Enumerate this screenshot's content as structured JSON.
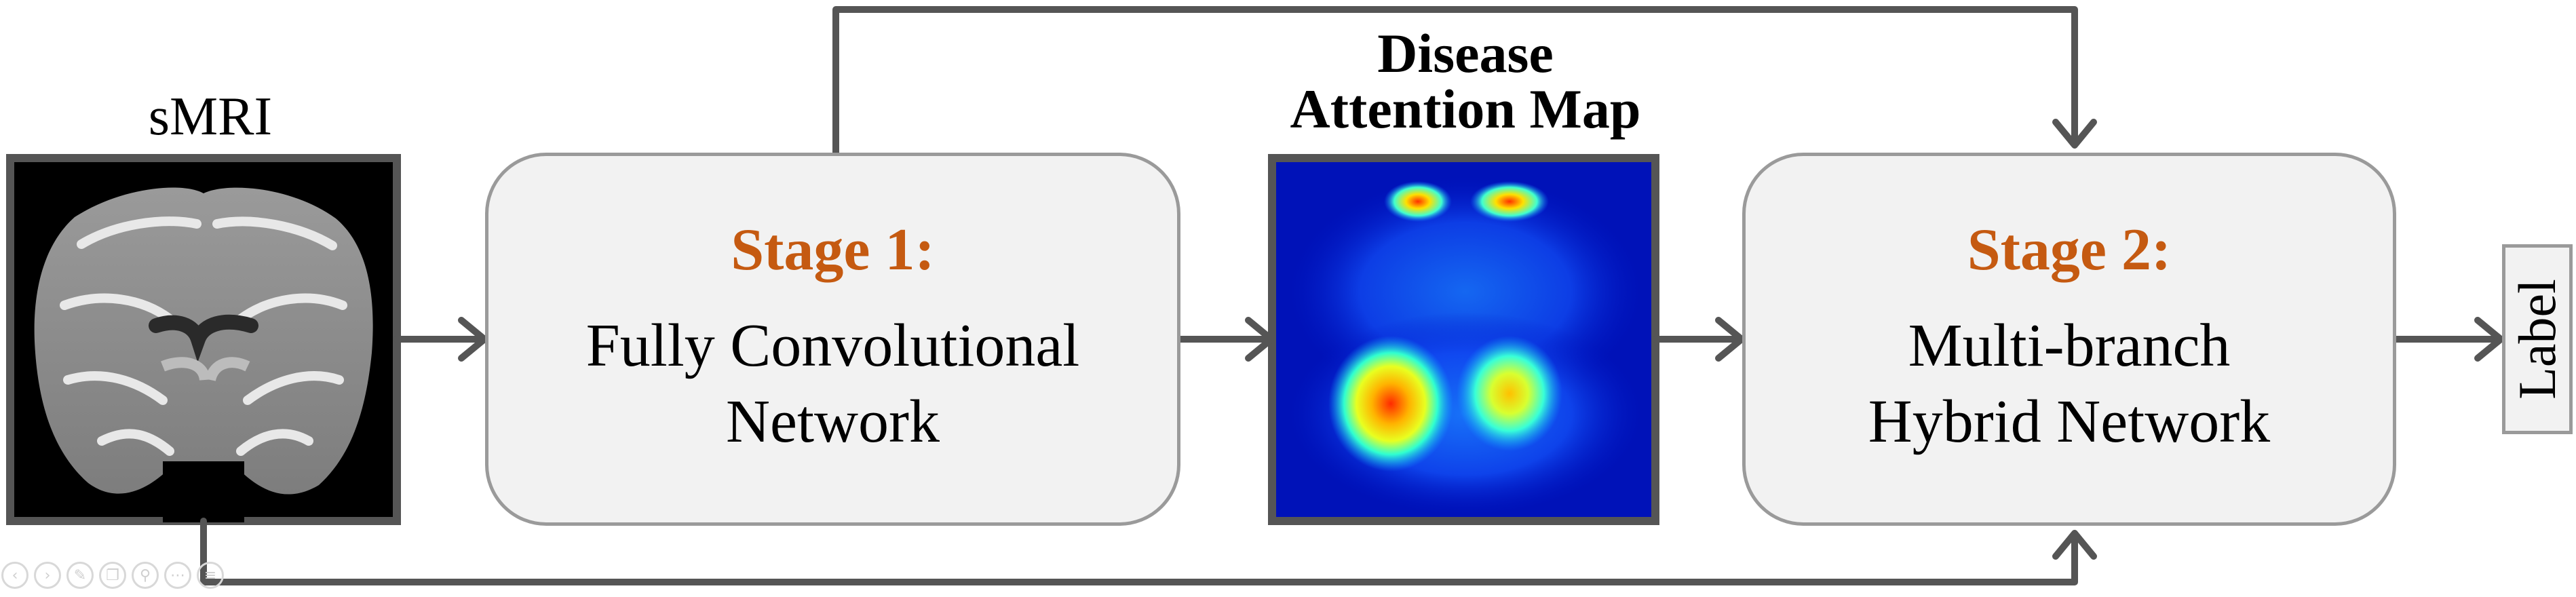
{
  "inputs": {
    "smri_caption": "sMRI"
  },
  "attention": {
    "caption_line1": "Disease",
    "caption_line2": "Attention Map"
  },
  "stage1": {
    "title": "Stage 1:",
    "line1": "Fully Convolutional",
    "line2": "Network"
  },
  "stage2": {
    "title": "Stage 2:",
    "line1": "Multi-branch",
    "line2": "Hybrid Network"
  },
  "output": {
    "label": "Label"
  },
  "colors": {
    "stage_title": "#c55a11",
    "arrow": "#555555",
    "box_fill": "#f2f2f2",
    "box_border": "#9a9a9a"
  },
  "toolbar_icons": [
    "back-icon",
    "forward-icon",
    "pen-icon",
    "copy-icon",
    "zoom-icon",
    "more-icon",
    "menu-icon"
  ]
}
